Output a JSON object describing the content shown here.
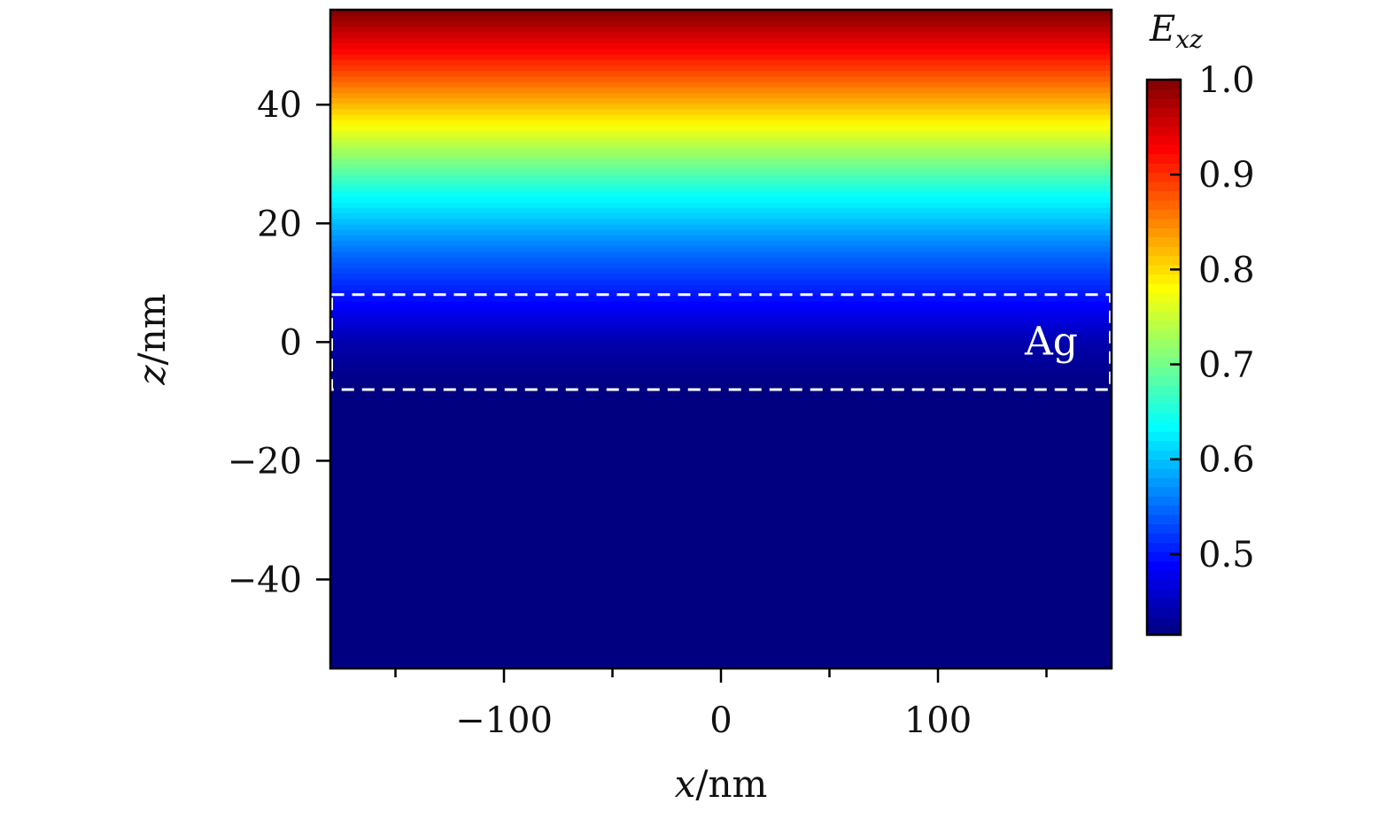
{
  "chart_data": {
    "type": "heatmap",
    "title": "",
    "xlabel": {
      "var": "x",
      "unit": "nm"
    },
    "ylabel": {
      "var": "z",
      "unit": "nm"
    },
    "xlim": [
      -180,
      180
    ],
    "ylim": [
      -55,
      56
    ],
    "x_ticks": [
      -100,
      0,
      100
    ],
    "x_tick_labels": [
      "−100",
      "0",
      "100"
    ],
    "y_ticks": [
      -40,
      -20,
      0,
      20,
      40
    ],
    "y_tick_labels": [
      "−40",
      "−20",
      "0",
      "20",
      "40"
    ],
    "x_minor_ticks": [
      -150,
      -50,
      50,
      150
    ],
    "colormap": "jet",
    "colorbar": {
      "label": {
        "base": "E",
        "sub": "xz"
      },
      "range": [
        0.415,
        1.0
      ],
      "ticks": [
        0.5,
        0.6,
        0.7,
        0.8,
        0.9,
        1.0
      ],
      "tick_labels": [
        "0.5",
        "0.6",
        "0.7",
        "0.8",
        "0.9",
        "1.0"
      ]
    },
    "field_profile": {
      "description_z_nm": [
        -55,
        -8,
        0,
        8,
        15,
        25,
        35,
        45,
        56
      ],
      "values": [
        0.415,
        0.415,
        0.44,
        0.5,
        0.55,
        0.64,
        0.76,
        0.88,
        1.0
      ]
    },
    "annotations": [
      {
        "text": "Ag",
        "region": {
          "z_min": -8,
          "z_max": 8
        },
        "style": "dashed-white-box"
      }
    ]
  }
}
